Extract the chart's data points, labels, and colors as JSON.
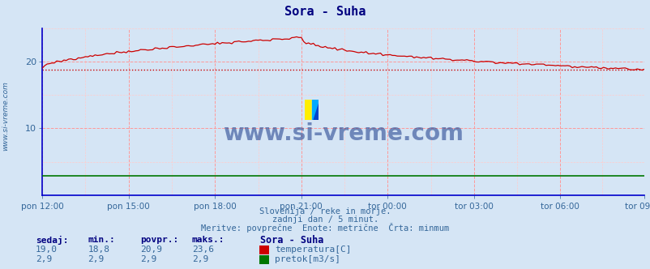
{
  "title": "Sora - Suha",
  "background_color": "#d5e5f5",
  "plot_bg_color": "#d5e5f5",
  "x_tick_labels": [
    "pon 12:00",
    "pon 15:00",
    "pon 18:00",
    "pon 21:00",
    "tor 00:00",
    "tor 03:00",
    "tor 06:00",
    "tor 09:00"
  ],
  "x_tick_positions": [
    0,
    36,
    72,
    108,
    144,
    180,
    216,
    251
  ],
  "n_points": 252,
  "ylim": [
    0,
    25
  ],
  "yticks": [
    10,
    20
  ],
  "temp_min_line": 18.8,
  "temp_color": "#cc0000",
  "flow_color": "#007700",
  "flow_value": 2.9,
  "subtitle1": "Slovenija / reke in morje.",
  "subtitle2": "zadnji dan / 5 minut.",
  "subtitle3": "Meritve: povprečne  Enote: metrične  Črta: minmum",
  "footer_cols": [
    "sedaj:",
    "min.:",
    "povpr.:",
    "maks.:"
  ],
  "footer_col_values_temp": [
    "19,0",
    "18,8",
    "20,9",
    "23,6"
  ],
  "footer_col_values_flow": [
    "2,9",
    "2,9",
    "2,9",
    "2,9"
  ],
  "footer_series_label": "Sora - Suha",
  "footer_temp_label": "temperatura[C]",
  "footer_flow_label": "pretok[m3/s]",
  "watermark": "www.si-vreme.com",
  "ylabel_rotated": "www.si-vreme.com",
  "grid_color": "#ff9999",
  "grid_minor_color": "#ffcccc",
  "axis_color": "#0000cc",
  "tick_color": "#336699",
  "title_color": "#000080",
  "subtitle_color": "#336699",
  "footer_header_color": "#000080",
  "footer_val_color": "#336699"
}
